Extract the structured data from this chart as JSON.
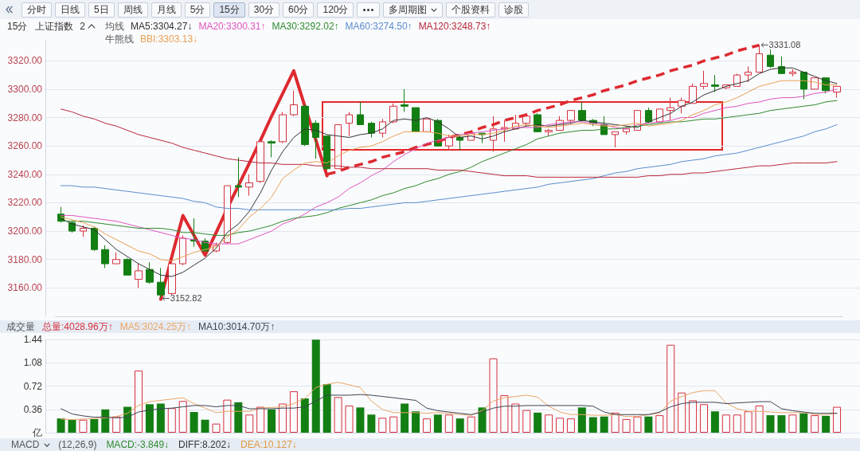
{
  "chart_data": [
    {
      "type": "other",
      "annotations": [
        "分时",
        "日线",
        "5日",
        "周线",
        "月线",
        "5分",
        "15分",
        "30分",
        "60分",
        "120分",
        "多周期图",
        "个股资料",
        "诊股"
      ]
    },
    {
      "type": "candlestick",
      "title": "上证指数",
      "legend_title": "均线",
      "annotations": [
        "15分",
        "2",
        "牛熊线",
        "3331.08",
        "3152.82"
      ],
      "categories": [
        null,
        null,
        null,
        null,
        null,
        null,
        null,
        null,
        null,
        null,
        null,
        null,
        null,
        null,
        null,
        null,
        null,
        null,
        null,
        null,
        null,
        null,
        null,
        null,
        null,
        null,
        null,
        null,
        null,
        null,
        null,
        null,
        null,
        null,
        null,
        null,
        null,
        null,
        null,
        null,
        null,
        null,
        null,
        null,
        null,
        null,
        null,
        null,
        null,
        null,
        null,
        null,
        null,
        null,
        null,
        null,
        null,
        null,
        null,
        null,
        null,
        null,
        null,
        null,
        null,
        null,
        null,
        null,
        null,
        null,
        null
      ],
      "ohlc": [
        [
          3212,
          3217,
          3206,
          3207
        ],
        [
          3206,
          3207,
          3199,
          3200
        ],
        [
          3200,
          3204,
          3196,
          3202
        ],
        [
          3202,
          3203,
          3186,
          3187
        ],
        [
          3187,
          3190,
          3174,
          3177
        ],
        [
          3177,
          3185,
          3177,
          3180
        ],
        [
          3180,
          3181,
          3169,
          3169
        ],
        [
          3166,
          3177,
          3160,
          3172
        ],
        [
          3173,
          3178,
          3163,
          3164
        ],
        [
          3164,
          3174,
          3152.82,
          3155
        ],
        [
          3156,
          3177,
          3155,
          3177
        ],
        [
          3177,
          3197,
          3176,
          3195
        ],
        [
          3194,
          3209,
          3189,
          3193
        ],
        [
          3193,
          3195,
          3186,
          3186
        ],
        [
          3186,
          3192,
          3185,
          3190
        ],
        [
          3192,
          3232,
          3191,
          3232
        ],
        [
          3232,
          3252,
          3224,
          3231
        ],
        [
          3231,
          3240,
          3225,
          3234
        ],
        [
          3235,
          3263,
          3234,
          3263
        ],
        [
          3263,
          3264,
          3252,
          3262
        ],
        [
          3263,
          3284,
          3262,
          3282
        ],
        [
          3282,
          3299,
          3281,
          3289
        ],
        [
          3288,
          3289,
          3260,
          3261
        ],
        [
          3276,
          3278,
          3251,
          3266
        ],
        [
          3267,
          3267,
          3243,
          3244
        ],
        [
          3244,
          3275,
          3244,
          3275
        ],
        [
          3276,
          3284,
          3267,
          3282
        ],
        [
          3282,
          3291,
          3275,
          3275
        ],
        [
          3276,
          3277,
          3266,
          3269
        ],
        [
          3269,
          3279,
          3266,
          3277
        ],
        [
          3277,
          3290,
          3276,
          3288
        ],
        [
          3289,
          3300,
          3284,
          3288
        ],
        [
          3287,
          3287,
          3270,
          3270
        ],
        [
          3270,
          3279,
          3270,
          3279
        ],
        [
          3278,
          3279,
          3260,
          3260
        ],
        [
          3260,
          3268,
          3257,
          3266
        ],
        [
          3266,
          3268,
          3257,
          3264
        ],
        [
          3264,
          3269,
          3264,
          3269
        ],
        [
          3269,
          3269,
          3262,
          3268
        ],
        [
          3264,
          3281,
          3256,
          3272
        ],
        [
          3272,
          3278,
          3263,
          3273
        ],
        [
          3272,
          3282,
          3272,
          3276
        ],
        [
          3276,
          3283,
          3274,
          3281
        ],
        [
          3282,
          3283,
          3270,
          3270
        ],
        [
          3270,
          3272,
          3267,
          3271
        ],
        [
          3271,
          3281,
          3271,
          3278
        ],
        [
          3278,
          3285,
          3276,
          3285
        ],
        [
          3285,
          3291,
          3277,
          3278
        ],
        [
          3278,
          3279,
          3274,
          3276
        ],
        [
          3275,
          3281,
          3268,
          3268
        ],
        [
          3268,
          3270,
          3259,
          3270
        ],
        [
          3270,
          3274,
          3268,
          3272
        ],
        [
          3271,
          3285,
          3271,
          3285
        ],
        [
          3285,
          3287,
          3276,
          3277
        ],
        [
          3277,
          3286,
          3277,
          3286
        ],
        [
          3285,
          3294,
          3278,
          3287
        ],
        [
          3288,
          3294,
          3283,
          3292
        ],
        [
          3290,
          3304,
          3290,
          3302
        ],
        [
          3302,
          3313,
          3300,
          3304
        ],
        [
          3303,
          3310,
          3298,
          3302
        ],
        [
          3301,
          3303,
          3300,
          3303
        ],
        [
          3302,
          3311,
          3302,
          3310
        ],
        [
          3310,
          3316,
          3305,
          3312
        ],
        [
          3312,
          3331.08,
          3312,
          3325
        ],
        [
          3324,
          3328,
          3315,
          3316
        ],
        [
          3316,
          3323,
          3311,
          3311
        ],
        [
          3311,
          3314,
          3309,
          3312
        ],
        [
          3312,
          3312,
          3293,
          3300
        ],
        [
          3300,
          3308,
          3300,
          3308
        ],
        [
          3308,
          3308,
          3297,
          3299
        ],
        [
          3298,
          3302,
          3294,
          3302
        ]
      ],
      "colors": [
        "#137f13",
        "#137f13",
        "#d7303f",
        "#137f13",
        "#137f13",
        "#d7303f",
        "#137f13",
        "#d7303f",
        "#137f13",
        "#137f13",
        "#d7303f",
        "#d7303f",
        "#137f13",
        "#137f13",
        "#d7303f",
        "#d7303f",
        "#137f13",
        "#d7303f",
        "#d7303f",
        "#137f13",
        "#d7303f",
        "#d7303f",
        "#137f13",
        "#137f13",
        "#137f13",
        "#d7303f",
        "#d7303f",
        "#137f13",
        "#137f13",
        "#d7303f",
        "#d7303f",
        "#137f13",
        "#137f13",
        "#d7303f",
        "#137f13",
        "#d7303f",
        "#137f13",
        "#d7303f",
        "#137f13",
        "#d7303f",
        "#d7303f",
        "#d7303f",
        "#d7303f",
        "#137f13",
        "#d7303f",
        "#d7303f",
        "#d7303f",
        "#137f13",
        "#137f13",
        "#137f13",
        "#d7303f",
        "#d7303f",
        "#d7303f",
        "#137f13",
        "#d7303f",
        "#d7303f",
        "#d7303f",
        "#d7303f",
        "#d7303f",
        "#137f13",
        "#d7303f",
        "#d7303f",
        "#d7303f",
        "#d7303f",
        "#137f13",
        "#137f13",
        "#d7303f",
        "#137f13",
        "#d7303f",
        "#137f13",
        "#d7303f"
      ],
      "series": [
        {
          "type": "line",
          "name": "MA5:3304.27↓",
          "color": "#333333",
          "values": [
            3209,
            3205,
            3203,
            3201,
            3194,
            3187,
            3182,
            3177,
            3173,
            3169,
            3168,
            3171,
            3176,
            3181,
            3188,
            3199,
            3205,
            3214,
            3227,
            3243,
            3256,
            3266,
            3272,
            3271,
            3268,
            3267,
            3266,
            3268,
            3269,
            3272,
            3278,
            3279,
            3278,
            3280,
            3277,
            3272,
            3266,
            3267,
            3265,
            3267,
            3270,
            3272,
            3274,
            3275,
            3274,
            3275,
            3276,
            3278,
            3277,
            3276,
            3275,
            3274,
            3273,
            3277,
            3280,
            3283,
            3288,
            3291,
            3296,
            3299,
            3302,
            3304,
            3306,
            3311,
            3314,
            3315,
            3315,
            3312,
            3309,
            3306,
            3304
          ]
        },
        {
          "type": "line",
          "name": "MA20:3300.31↑",
          "color": "#df55bf",
          "values": [
            3211,
            3211,
            3210,
            3209,
            3208,
            3207,
            3205,
            3203,
            3201,
            3199,
            3197,
            3195,
            3194,
            3192,
            3191,
            3191,
            3191,
            3194,
            3197,
            3200,
            3205,
            3208,
            3212,
            3217,
            3220,
            3224,
            3230,
            3234,
            3239,
            3243,
            3249,
            3254,
            3258,
            3262,
            3264,
            3266,
            3268,
            3269,
            3270,
            3271,
            3272,
            3273,
            3273,
            3273,
            3275,
            3276,
            3277,
            3277,
            3276,
            3275,
            3273,
            3272,
            3275,
            3276,
            3277,
            3278,
            3280,
            3280,
            3283,
            3285,
            3287,
            3288,
            3290,
            3291,
            3293,
            3294,
            3294,
            3295,
            3297,
            3298,
            3300
          ]
        },
        {
          "type": "line",
          "name": "MA30:3292.02↑",
          "color": "#2f8a2f",
          "values": [
            3207,
            3207,
            3207,
            3206,
            3205,
            3204,
            3203,
            3202,
            3202,
            3202,
            3201,
            3199,
            3199,
            3198,
            3197,
            3197,
            3199,
            3200,
            3202,
            3204,
            3207,
            3209,
            3210,
            3211,
            3213,
            3216,
            3218,
            3220,
            3222,
            3225,
            3227,
            3230,
            3232,
            3235,
            3237,
            3240,
            3242,
            3245,
            3249,
            3252,
            3255,
            3258,
            3261,
            3265,
            3267,
            3269,
            3270,
            3271,
            3271,
            3272,
            3272,
            3273,
            3274,
            3275,
            3276,
            3277,
            3277,
            3278,
            3279,
            3279,
            3280,
            3281,
            3282,
            3283,
            3285,
            3286,
            3287,
            3288,
            3289,
            3291,
            3292
          ]
        },
        {
          "type": "line",
          "name": "MA60:3274.50↑",
          "color": "#5a8ccc",
          "values": [
            3232,
            3232,
            3231,
            3231,
            3230,
            3229,
            3228,
            3227,
            3226,
            3225,
            3224,
            3223,
            3221,
            3220,
            3217,
            3216,
            3216,
            3215,
            3215,
            3215,
            3215,
            3215,
            3215,
            3215,
            3215,
            3215,
            3216,
            3216,
            3217,
            3218,
            3219,
            3220,
            3220,
            3221,
            3222,
            3223,
            3224,
            3225,
            3226,
            3227,
            3228,
            3229,
            3230,
            3231,
            3233,
            3234,
            3235,
            3236,
            3237,
            3239,
            3241,
            3242,
            3244,
            3245,
            3246,
            3247,
            3249,
            3250,
            3251,
            3253,
            3254,
            3255,
            3257,
            3259,
            3261,
            3263,
            3265,
            3267,
            3270,
            3272,
            3275
          ]
        },
        {
          "type": "line",
          "name": "MA120:3248.73↑",
          "color": "#b8283a",
          "values": [
            3286,
            3284,
            3281,
            3279,
            3276,
            3274,
            3271,
            3268,
            3266,
            3264,
            3262,
            3259,
            3257,
            3255,
            3253,
            3251,
            3250,
            3249,
            3248,
            3248,
            3247,
            3247,
            3247,
            3246,
            3246,
            3246,
            3245,
            3245,
            3244,
            3244,
            3244,
            3244,
            3244,
            3244,
            3243,
            3243,
            3243,
            3242,
            3241,
            3240,
            3239,
            3239,
            3239,
            3238,
            3238,
            3238,
            3238,
            3238,
            3238,
            3238,
            3238,
            3238,
            3238,
            3239,
            3239,
            3240,
            3240,
            3241,
            3241,
            3242,
            3243,
            3244,
            3245,
            3246,
            3246,
            3247,
            3248,
            3248,
            3248,
            3248,
            3249
          ]
        },
        {
          "type": "line",
          "name": "BBI:3303.13↓",
          "color": "#e9a050",
          "values": [
            3210,
            3208,
            3206,
            3203,
            3198,
            3194,
            3190,
            3186,
            3184,
            3180,
            3179,
            3182,
            3185,
            3187,
            3189,
            3196,
            3201,
            3210,
            3216,
            3224,
            3237,
            3243,
            3248,
            3249,
            3248,
            3253,
            3257,
            3259,
            3260,
            3263,
            3267,
            3270,
            3270,
            3270,
            3269,
            3267,
            3267,
            3268,
            3268,
            3269,
            3271,
            3274,
            3275,
            3274,
            3273,
            3274,
            3275,
            3276,
            3275,
            3274,
            3274,
            3275,
            3276,
            3274,
            3275,
            3276,
            3278,
            3282,
            3285,
            3289,
            3291,
            3294,
            3298,
            3302,
            3304,
            3306,
            3306,
            3306,
            3305,
            3303,
            3303
          ]
        },
        {
          "type": "line",
          "color": "#dd2a30",
          "values": [
            null,
            null,
            null,
            null,
            null,
            null,
            null,
            null,
            null,
            3152,
            3182,
            3211,
            3197,
            3183,
            3199,
            3216,
            3232,
            3248,
            3264,
            3281,
            3297,
            3313,
            3288,
            3264,
            3239,
            null,
            null,
            null,
            null,
            null,
            null,
            null,
            null,
            null,
            null,
            null,
            null,
            null,
            null,
            null,
            null,
            null,
            null,
            null,
            null,
            null,
            null,
            null,
            null,
            null,
            null,
            null,
            null,
            null,
            null,
            null,
            null,
            null,
            null,
            null,
            null,
            null,
            null,
            null,
            null,
            null,
            null,
            null,
            null,
            null,
            null
          ]
        },
        {
          "type": "line",
          "color": "#dd2a30",
          "line_style": "dashed",
          "values": [
            null,
            null,
            null,
            null,
            null,
            null,
            null,
            null,
            null,
            null,
            null,
            null,
            null,
            null,
            null,
            null,
            null,
            null,
            null,
            null,
            null,
            null,
            null,
            null,
            3240,
            3242,
            3245,
            3247,
            3249,
            3252,
            3254,
            3256,
            3259,
            3261,
            3263,
            3266,
            3268,
            3270,
            3273,
            3275,
            3278,
            3280,
            3282,
            3285,
            3287,
            3289,
            3292,
            3294,
            3296,
            3299,
            3301,
            3303,
            3306,
            3308,
            3310,
            3313,
            3315,
            3317,
            3320,
            3322,
            3324,
            3327,
            3329,
            3331,
            null,
            null,
            null,
            null,
            null,
            null,
            null
          ]
        }
      ],
      "ylim": [
        3140,
        3335
      ],
      "yticks": [
        {
          "value": 3160,
          "label": "3160.00"
        },
        {
          "value": 3180,
          "label": "3180.00"
        },
        {
          "value": 3200,
          "label": "3200.00"
        },
        {
          "value": 3220,
          "label": "3220.00"
        },
        {
          "value": 3240,
          "label": "3240.00"
        },
        {
          "value": 3260,
          "label": "3260.00"
        },
        {
          "value": 3280,
          "label": "3280.00"
        },
        {
          "value": 3300,
          "label": "3300.00"
        },
        {
          "value": 3320,
          "label": "3320.00"
        }
      ],
      "grid": "y",
      "legend": "top left",
      "marker": "none",
      "tick_labels": "y"
    },
    {
      "type": "bar",
      "title": "成交量",
      "categories": [
        null,
        null,
        null,
        null,
        null,
        null,
        null,
        null,
        null,
        null,
        null,
        null,
        null,
        null,
        null,
        null,
        null,
        null,
        null,
        null,
        null,
        null,
        null,
        null,
        null,
        null,
        null,
        null,
        null,
        null,
        null,
        null,
        null,
        null,
        null,
        null,
        null,
        null,
        null,
        null,
        null,
        null,
        null,
        null,
        null,
        null,
        null,
        null,
        null,
        null,
        null,
        null,
        null,
        null,
        null,
        null,
        null,
        null,
        null,
        null,
        null,
        null,
        null,
        null,
        null,
        null,
        null,
        null,
        null,
        null,
        null
      ],
      "series": [
        {
          "name": "总量:4028.96万↑",
          "colors": [
            "#137f13",
            "#137f13",
            "#d7303f",
            "#137f13",
            "#137f13",
            "#d7303f",
            "#137f13",
            "#d7303f",
            "#137f13",
            "#137f13",
            "#d7303f",
            "#d7303f",
            "#137f13",
            "#137f13",
            "#d7303f",
            "#d7303f",
            "#137f13",
            "#d7303f",
            "#d7303f",
            "#137f13",
            "#d7303f",
            "#d7303f",
            "#137f13",
            "#137f13",
            "#137f13",
            "#d7303f",
            "#d7303f",
            "#137f13",
            "#137f13",
            "#d7303f",
            "#d7303f",
            "#137f13",
            "#137f13",
            "#d7303f",
            "#137f13",
            "#d7303f",
            "#137f13",
            "#d7303f",
            "#137f13",
            "#d7303f",
            "#d7303f",
            "#d7303f",
            "#d7303f",
            "#137f13",
            "#d7303f",
            "#d7303f",
            "#d7303f",
            "#137f13",
            "#137f13",
            "#137f13",
            "#d7303f",
            "#d7303f",
            "#d7303f",
            "#137f13",
            "#d7303f",
            "#d7303f",
            "#d7303f",
            "#d7303f",
            "#d7303f",
            "#137f13",
            "#d7303f",
            "#d7303f",
            "#d7303f",
            "#d7303f",
            "#137f13",
            "#137f13",
            "#d7303f",
            "#137f13",
            "#d7303f",
            "#137f13",
            "#d7303f"
          ],
          "values": [
            0.22,
            0.2,
            0.2,
            0.21,
            0.36,
            0.25,
            0.4,
            0.96,
            0.44,
            0.45,
            0.38,
            0.49,
            0.32,
            0.2,
            0.14,
            0.51,
            0.47,
            0.28,
            0.4,
            0.36,
            0.45,
            0.64,
            0.53,
            1.44,
            0.75,
            0.55,
            0.42,
            0.39,
            0.28,
            0.23,
            0.25,
            0.45,
            0.33,
            0.22,
            0.28,
            0.28,
            0.22,
            0.25,
            0.39,
            1.15,
            0.58,
            0.45,
            0.35,
            0.31,
            0.28,
            0.23,
            0.22,
            0.39,
            0.24,
            0.25,
            0.31,
            0.21,
            0.25,
            0.25,
            0.27,
            1.36,
            0.62,
            0.5,
            0.44,
            0.33,
            0.28,
            0.28,
            0.33,
            0.42,
            0.27,
            0.27,
            0.28,
            0.3,
            0.27,
            0.26,
            0.4
          ]
        },
        {
          "type": "line",
          "name": "MA5:3024.25万↑",
          "color": "#eba566",
          "values": [
            0.21,
            0.2,
            0.21,
            0.22,
            0.23,
            0.25,
            0.3,
            0.42,
            0.48,
            0.5,
            0.52,
            0.54,
            0.45,
            0.38,
            0.31,
            0.33,
            0.33,
            0.33,
            0.38,
            0.39,
            0.4,
            0.45,
            0.53,
            0.7,
            0.75,
            0.78,
            0.74,
            0.7,
            0.49,
            0.36,
            0.31,
            0.31,
            0.31,
            0.3,
            0.31,
            0.3,
            0.28,
            0.27,
            0.34,
            0.49,
            0.54,
            0.56,
            0.58,
            0.55,
            0.41,
            0.32,
            0.28,
            0.28,
            0.27,
            0.27,
            0.28,
            0.25,
            0.25,
            0.28,
            0.3,
            0.49,
            0.56,
            0.62,
            0.65,
            0.65,
            0.46,
            0.37,
            0.33,
            0.33,
            0.32,
            0.31,
            0.31,
            0.31,
            0.28,
            0.28,
            0.3
          ]
        },
        {
          "type": "line",
          "name": "MA10:3014.70万↑",
          "color": "#3c4454",
          "values": [
            0.37,
            0.29,
            0.26,
            0.24,
            0.24,
            0.23,
            0.24,
            0.32,
            0.35,
            0.37,
            0.38,
            0.4,
            0.42,
            0.42,
            0.4,
            0.42,
            0.42,
            0.37,
            0.37,
            0.37,
            0.38,
            0.38,
            0.4,
            0.49,
            0.58,
            0.58,
            0.58,
            0.59,
            0.58,
            0.56,
            0.54,
            0.52,
            0.5,
            0.38,
            0.34,
            0.32,
            0.3,
            0.28,
            0.32,
            0.38,
            0.41,
            0.41,
            0.42,
            0.42,
            0.42,
            0.42,
            0.42,
            0.42,
            0.41,
            0.32,
            0.28,
            0.28,
            0.28,
            0.28,
            0.32,
            0.4,
            0.45,
            0.47,
            0.47,
            0.47,
            0.45,
            0.46,
            0.47,
            0.48,
            0.48,
            0.37,
            0.34,
            0.32,
            0.3,
            0.3,
            0.3
          ]
        }
      ],
      "ylim": [
        0,
        1.44
      ],
      "yticks": [
        {
          "value": 0,
          "label": "亿"
        },
        0.36,
        0.72,
        1.08,
        1.44
      ],
      "grid": "y",
      "legend": "top left",
      "marker": "none",
      "tick_labels": "y"
    },
    {
      "type": "other",
      "title": "MACD",
      "annotations": [
        "(12,26,9)",
        "MACD:-3.849↓",
        "DIFF:8.202↓",
        "DEA:10.127↓"
      ]
    }
  ]
}
